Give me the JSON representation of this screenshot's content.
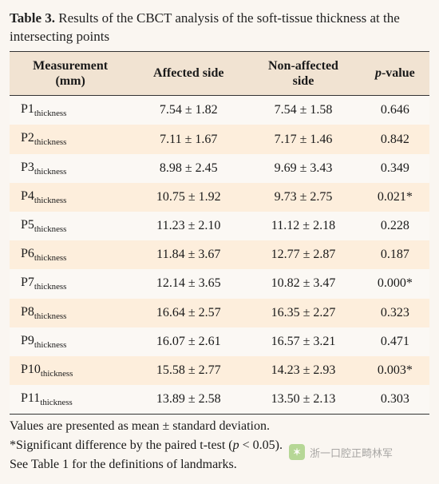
{
  "caption": {
    "label": "Table 3.",
    "text": "Results of the CBCT analysis of the soft-tissue thickness at the intersecting points"
  },
  "table": {
    "type": "table",
    "background_color": "#faf6f1",
    "header_bg": "#f1e3d2",
    "row_even_bg": "#fdeedc",
    "row_odd_bg": "#fbf8f4",
    "border_color": "#333333",
    "font_size_pt": 12,
    "columns": [
      {
        "key": "measurement",
        "label_line1": "Measurement",
        "label_line2": "(mm)",
        "align": "left"
      },
      {
        "key": "affected",
        "label_line1": "Affected side",
        "label_line2": "",
        "align": "center"
      },
      {
        "key": "nonaffected",
        "label_line1": "Non-affected",
        "label_line2": "side",
        "align": "center"
      },
      {
        "key": "pvalue",
        "label_line1": "p",
        "label_line2": "-value",
        "align": "center",
        "italic_first": true
      }
    ],
    "rows": [
      {
        "m_base": "P1",
        "m_sub": "thickness",
        "affected": "7.54 ± 1.82",
        "nonaffected": "7.54 ± 1.58",
        "pvalue": "0.646"
      },
      {
        "m_base": "P2",
        "m_sub": "thickness",
        "affected": "7.11 ± 1.67",
        "nonaffected": "7.17 ± 1.46",
        "pvalue": "0.842"
      },
      {
        "m_base": "P3",
        "m_sub": "thickness",
        "affected": "8.98 ± 2.45",
        "nonaffected": "9.69 ± 3.43",
        "pvalue": "0.349"
      },
      {
        "m_base": "P4",
        "m_sub": "thickness",
        "affected": "10.75 ± 1.92",
        "nonaffected": "9.73 ± 2.75",
        "pvalue": "0.021*"
      },
      {
        "m_base": "P5",
        "m_sub": "thickness",
        "affected": "11.23 ± 2.10",
        "nonaffected": "11.12 ± 2.18",
        "pvalue": "0.228"
      },
      {
        "m_base": "P6",
        "m_sub": "thickness",
        "affected": "11.84 ± 3.67",
        "nonaffected": "12.77 ± 2.87",
        "pvalue": "0.187"
      },
      {
        "m_base": "P7",
        "m_sub": "thickness",
        "affected": "12.14 ± 3.65",
        "nonaffected": "10.82 ± 3.47",
        "pvalue": "0.000*"
      },
      {
        "m_base": "P8",
        "m_sub": "thickness",
        "affected": "16.64 ± 2.57",
        "nonaffected": "16.35 ± 2.27",
        "pvalue": "0.323"
      },
      {
        "m_base": "P9",
        "m_sub": "thickness",
        "affected": "16.07 ± 2.61",
        "nonaffected": "16.57 ± 3.21",
        "pvalue": "0.471"
      },
      {
        "m_base": "P10",
        "m_sub": "thickness",
        "affected": "15.58 ± 2.77",
        "nonaffected": "14.23 ± 2.93",
        "pvalue": "0.003*"
      },
      {
        "m_base": "P11",
        "m_sub": "thickness",
        "affected": "13.89 ± 2.58",
        "nonaffected": "13.50 ± 2.13",
        "pvalue": "0.303"
      }
    ]
  },
  "footnotes": {
    "line1": "Values are presented as mean ± standard deviation.",
    "line2_pre": "*Significant difference by the paired t-test (",
    "line2_ital": "p",
    "line2_post": " < 0.05).",
    "line3": "See Table 1 for the definitions of landmarks."
  },
  "watermark": {
    "icon_glyph": "✶",
    "text": "浙一口腔正畸林军"
  }
}
